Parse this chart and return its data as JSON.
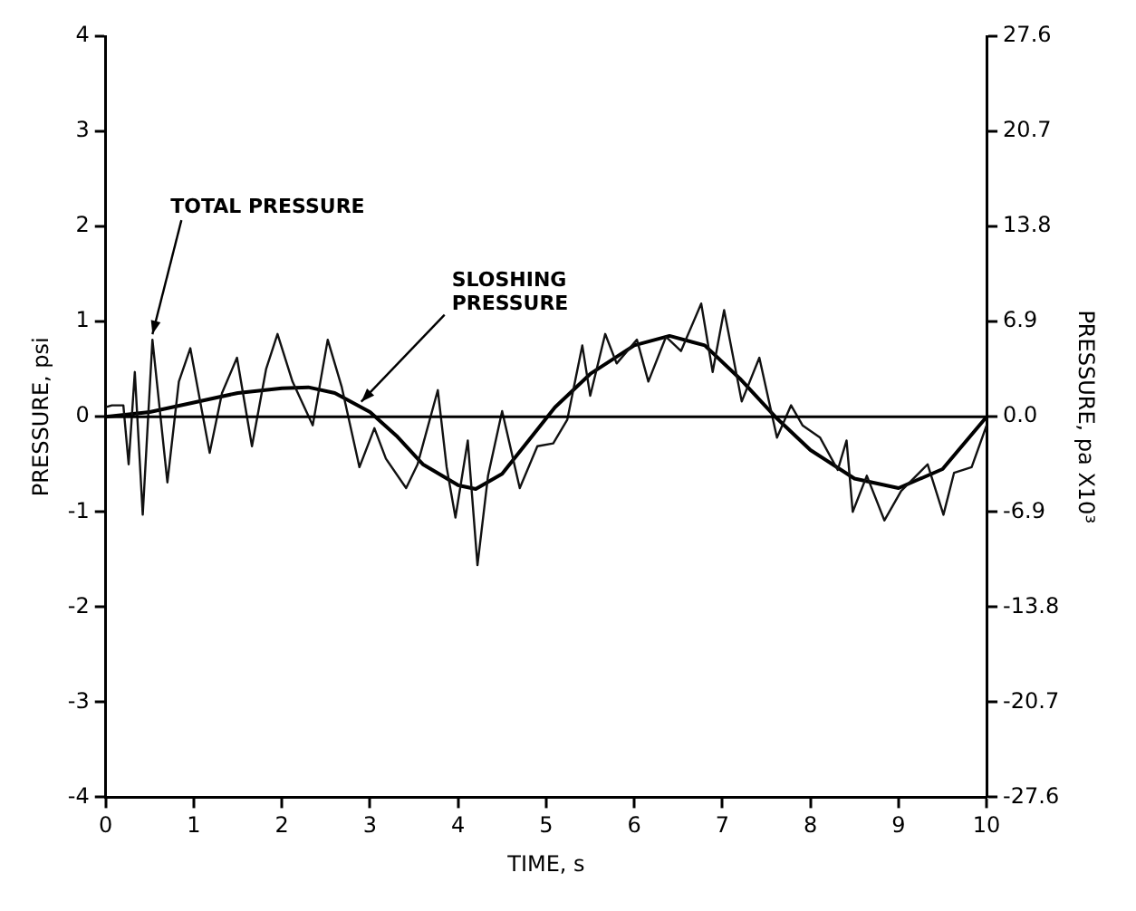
{
  "chart_data": {
    "type": "line",
    "xlabel": "TIME, s",
    "ylabel": "PRESSURE, psi",
    "y2label": "PRESSURE, pa X10³",
    "xlim": [
      0,
      10
    ],
    "xticks": [
      0,
      1,
      2,
      3,
      4,
      5,
      6,
      7,
      8,
      9,
      10
    ],
    "ylim": [
      -4,
      4
    ],
    "yticks": [
      -4,
      -3,
      -2,
      -1,
      0,
      1,
      2,
      3,
      4
    ],
    "y2lim": [
      -27.6,
      27.6
    ],
    "y2ticks": [
      -27.6,
      -20.7,
      -13.8,
      -6.9,
      {
        "value": 0,
        "label": "0.0"
      },
      6.9,
      13.8,
      20.7,
      27.6
    ],
    "grid": false,
    "legend": false,
    "marker": "none",
    "line_style": "solid",
    "ref_lines": [
      {
        "axis": "y",
        "value": 0,
        "color": "#000000"
      }
    ],
    "annotations": [
      {
        "text": "TOTAL PRESSURE",
        "x": 0.53,
        "y": 0.81
      },
      {
        "text": "SLOSHING PRESSURE",
        "x": 2.9,
        "y": 0.1
      }
    ],
    "series": [
      {
        "color": "#111111",
        "x": [
          0,
          0.07,
          0.2,
          0.26,
          0.33,
          0.42,
          0.53,
          0.7,
          0.83,
          0.96,
          1.18,
          1.32,
          1.49,
          1.66,
          1.82,
          1.95,
          2.12,
          2.35,
          2.52,
          2.68,
          2.88,
          3.05,
          3.18,
          3.41,
          3.54,
          3.77,
          3.87,
          3.97,
          4.11,
          4.22,
          4.34,
          4.5,
          4.7,
          4.9,
          5.08,
          5.24,
          5.41,
          5.5,
          5.67,
          5.8,
          6.03,
          6.16,
          6.36,
          6.53,
          6.76,
          6.89,
          7.02,
          7.22,
          7.42,
          7.62,
          7.78,
          7.91,
          8.11,
          8.31,
          8.41,
          8.48,
          8.64,
          8.84,
          9.03,
          9.33,
          9.51,
          9.63,
          9.83,
          10
        ],
        "values": [
          0.1,
          0.12,
          0.12,
          -0.5,
          0.47,
          -1.03,
          0.81,
          -0.69,
          0.37,
          0.72,
          -0.38,
          0.25,
          0.62,
          -0.31,
          0.5,
          0.87,
          0.37,
          -0.09,
          0.81,
          0.31,
          -0.53,
          -0.12,
          -0.44,
          -0.75,
          -0.5,
          0.28,
          -0.53,
          -1.06,
          -0.25,
          -1.56,
          -0.62,
          0.06,
          -0.75,
          -0.31,
          -0.28,
          -0.03,
          0.75,
          0.22,
          0.87,
          0.56,
          0.81,
          0.37,
          0.84,
          0.69,
          1.19,
          0.47,
          1.12,
          0.16,
          0.62,
          -0.22,
          0.12,
          -0.09,
          -0.22,
          -0.56,
          -0.25,
          -1,
          -0.62,
          -1.09,
          -0.78,
          -0.5,
          -1.03,
          -0.59,
          -0.53,
          -0.09
        ]
      },
      {
        "color": "#000000",
        "x": [
          0,
          0.5,
          1,
          1.5,
          2,
          2.3,
          2.6,
          3,
          3.3,
          3.6,
          4,
          4.2,
          4.5,
          4.8,
          5.1,
          5.5,
          6,
          6.4,
          6.8,
          7.2,
          7.6,
          8,
          8.5,
          9,
          9.5,
          10
        ],
        "values": [
          0,
          0.05,
          0.15,
          0.25,
          0.3,
          0.31,
          0.25,
          0.05,
          -0.2,
          -0.5,
          -0.72,
          -0.76,
          -0.6,
          -0.25,
          0.1,
          0.45,
          0.75,
          0.85,
          0.75,
          0.4,
          0,
          -0.35,
          -0.65,
          -0.75,
          -0.55,
          0
        ]
      }
    ]
  }
}
